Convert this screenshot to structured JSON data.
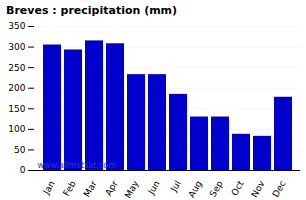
{
  "chart_data": {
    "type": "bar",
    "title": "Breves : precipitation (mm)",
    "categories": [
      "Jan",
      "Feb",
      "Mar",
      "Apr",
      "May",
      "Jun",
      "Jul",
      "Aug",
      "Sep",
      "Oct",
      "Nov",
      "Dec"
    ],
    "values": [
      305,
      293,
      315,
      308,
      233,
      233,
      185,
      130,
      130,
      88,
      83,
      178
    ],
    "color": "#0000CC",
    "ylim": [
      0,
      350
    ],
    "yticks": [
      0,
      50,
      100,
      150,
      200,
      250,
      300,
      350
    ],
    "grid": true,
    "annotations": [
      {
        "text": "www.allmetsat.com",
        "color": "#3333BB"
      }
    ]
  }
}
